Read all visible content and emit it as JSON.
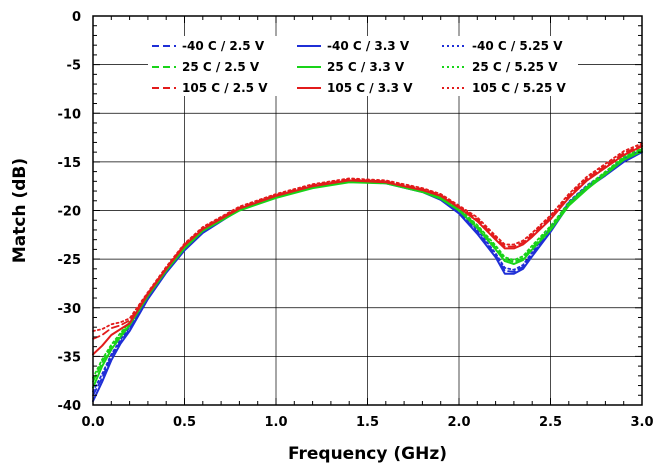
{
  "chart_data": {
    "type": "line",
    "xlabel": "Frequency (GHz)",
    "ylabel": "Match (dB)",
    "xlim": [
      0,
      3.0
    ],
    "ylim": [
      -40,
      0
    ],
    "x_ticks": [
      "0.0",
      "0.5",
      "1.0",
      "1.5",
      "2.0",
      "2.5",
      "3.0"
    ],
    "y_ticks": [
      "0",
      "-5",
      "-10",
      "-15",
      "-20",
      "-25",
      "-30",
      "-35",
      "-40"
    ],
    "grid": true,
    "legend_position": "top",
    "series": [
      {
        "name": "-40 C / 2.5 V",
        "color": "#1f2fd6",
        "dash": "dashed",
        "x": [
          0.0,
          0.05,
          0.1,
          0.15,
          0.2,
          0.3,
          0.4,
          0.5,
          0.6,
          0.8,
          1.0,
          1.2,
          1.4,
          1.6,
          1.8,
          1.9,
          2.0,
          2.1,
          2.2,
          2.25,
          2.3,
          2.35,
          2.4,
          2.5,
          2.6,
          2.7,
          2.8,
          2.9,
          3.0
        ],
        "y": [
          -39.0,
          -37.2,
          -35.0,
          -33.5,
          -32.2,
          -29.0,
          -26.3,
          -24.0,
          -22.2,
          -19.8,
          -18.5,
          -17.5,
          -16.9,
          -17.1,
          -18.0,
          -18.8,
          -20.2,
          -22.2,
          -24.6,
          -26.2,
          -26.3,
          -25.8,
          -24.5,
          -22.0,
          -19.2,
          -17.5,
          -16.2,
          -14.8,
          -13.8
        ]
      },
      {
        "name": "-40 C / 3.3 V",
        "color": "#1f2fd6",
        "dash": "solid",
        "x": [
          0.0,
          0.05,
          0.1,
          0.15,
          0.2,
          0.3,
          0.4,
          0.5,
          0.6,
          0.8,
          1.0,
          1.2,
          1.4,
          1.6,
          1.8,
          1.9,
          2.0,
          2.1,
          2.2,
          2.25,
          2.3,
          2.35,
          2.4,
          2.5,
          2.6,
          2.7,
          2.8,
          2.9,
          3.0
        ],
        "y": [
          -39.6,
          -37.6,
          -35.4,
          -33.7,
          -32.4,
          -29.1,
          -26.4,
          -24.1,
          -22.3,
          -19.9,
          -18.6,
          -17.6,
          -17.0,
          -17.2,
          -18.1,
          -18.9,
          -20.3,
          -22.4,
          -24.8,
          -26.5,
          -26.5,
          -26.0,
          -24.7,
          -22.2,
          -19.4,
          -17.7,
          -16.4,
          -15.0,
          -14.0
        ]
      },
      {
        "name": "-40 C / 5.25 V",
        "color": "#1f2fd6",
        "dash": "dotted",
        "x": [
          0.0,
          0.05,
          0.1,
          0.15,
          0.2,
          0.3,
          0.4,
          0.5,
          0.6,
          0.8,
          1.0,
          1.2,
          1.4,
          1.6,
          1.8,
          1.9,
          2.0,
          2.1,
          2.2,
          2.25,
          2.3,
          2.35,
          2.4,
          2.5,
          2.6,
          2.7,
          2.8,
          2.9,
          3.0
        ],
        "y": [
          -38.6,
          -36.8,
          -34.8,
          -33.3,
          -32.0,
          -28.9,
          -26.2,
          -23.9,
          -22.1,
          -19.8,
          -18.5,
          -17.5,
          -16.9,
          -17.1,
          -18.0,
          -18.8,
          -20.1,
          -22.0,
          -24.4,
          -25.9,
          -26.1,
          -25.6,
          -24.3,
          -21.8,
          -19.1,
          -17.4,
          -16.1,
          -14.7,
          -13.7
        ]
      },
      {
        "name": "25 C / 2.5 V",
        "color": "#19d319",
        "dash": "dashed",
        "x": [
          0.0,
          0.05,
          0.1,
          0.15,
          0.2,
          0.3,
          0.4,
          0.5,
          0.6,
          0.8,
          1.0,
          1.2,
          1.4,
          1.6,
          1.8,
          1.9,
          2.0,
          2.1,
          2.2,
          2.25,
          2.3,
          2.35,
          2.4,
          2.5,
          2.6,
          2.7,
          2.8,
          2.9,
          3.0
        ],
        "y": [
          -37.6,
          -35.6,
          -34.0,
          -32.8,
          -31.6,
          -28.7,
          -26.1,
          -23.8,
          -22.0,
          -19.9,
          -18.6,
          -17.6,
          -17.0,
          -17.1,
          -18.0,
          -18.7,
          -19.9,
          -21.6,
          -23.8,
          -25.0,
          -25.3,
          -24.9,
          -23.8,
          -21.8,
          -19.3,
          -17.6,
          -16.1,
          -14.6,
          -13.7
        ]
      },
      {
        "name": "25 C / 3.3 V",
        "color": "#19d319",
        "dash": "solid",
        "x": [
          0.0,
          0.05,
          0.1,
          0.15,
          0.2,
          0.3,
          0.4,
          0.5,
          0.6,
          0.8,
          1.0,
          1.2,
          1.4,
          1.6,
          1.8,
          1.9,
          2.0,
          2.1,
          2.2,
          2.25,
          2.3,
          2.35,
          2.4,
          2.5,
          2.6,
          2.7,
          2.8,
          2.9,
          3.0
        ],
        "y": [
          -38.2,
          -36.0,
          -34.3,
          -33.0,
          -31.8,
          -28.8,
          -26.2,
          -23.9,
          -22.1,
          -20.0,
          -18.7,
          -17.7,
          -17.1,
          -17.2,
          -18.1,
          -18.8,
          -20.0,
          -21.8,
          -24.0,
          -25.2,
          -25.5,
          -25.1,
          -24.0,
          -22.0,
          -19.5,
          -17.8,
          -16.3,
          -14.8,
          -13.9
        ]
      },
      {
        "name": "25 C / 5.25 V",
        "color": "#19d319",
        "dash": "dotted",
        "x": [
          0.0,
          0.05,
          0.1,
          0.15,
          0.2,
          0.3,
          0.4,
          0.5,
          0.6,
          0.8,
          1.0,
          1.2,
          1.4,
          1.6,
          1.8,
          1.9,
          2.0,
          2.1,
          2.2,
          2.25,
          2.3,
          2.35,
          2.4,
          2.5,
          2.6,
          2.7,
          2.8,
          2.9,
          3.0
        ],
        "y": [
          -37.2,
          -35.3,
          -33.8,
          -32.6,
          -31.5,
          -28.6,
          -26.0,
          -23.7,
          -21.9,
          -19.8,
          -18.5,
          -17.6,
          -16.9,
          -17.1,
          -17.9,
          -18.6,
          -19.8,
          -21.5,
          -23.6,
          -24.8,
          -25.1,
          -24.7,
          -23.6,
          -21.6,
          -19.2,
          -17.5,
          -16.0,
          -14.5,
          -13.6
        ]
      },
      {
        "name": "105 C / 2.5 V",
        "color": "#e21b1b",
        "dash": "dashed",
        "x": [
          0.0,
          0.05,
          0.1,
          0.15,
          0.2,
          0.3,
          0.4,
          0.5,
          0.6,
          0.8,
          1.0,
          1.2,
          1.4,
          1.6,
          1.8,
          1.9,
          2.0,
          2.1,
          2.2,
          2.25,
          2.3,
          2.35,
          2.4,
          2.5,
          2.6,
          2.7,
          2.8,
          2.9,
          3.0
        ],
        "y": [
          -33.2,
          -32.8,
          -32.1,
          -31.8,
          -31.3,
          -28.5,
          -25.9,
          -23.5,
          -21.8,
          -19.7,
          -18.4,
          -17.4,
          -16.8,
          -17.0,
          -17.8,
          -18.4,
          -19.6,
          -20.9,
          -22.8,
          -23.7,
          -23.7,
          -23.3,
          -22.5,
          -20.7,
          -18.5,
          -16.7,
          -15.4,
          -14.1,
          -13.3
        ]
      },
      {
        "name": "105 C / 3.3 V",
        "color": "#e21b1b",
        "dash": "solid",
        "x": [
          0.0,
          0.05,
          0.1,
          0.15,
          0.2,
          0.3,
          0.4,
          0.5,
          0.6,
          0.8,
          1.0,
          1.2,
          1.4,
          1.6,
          1.8,
          1.9,
          2.0,
          2.1,
          2.2,
          2.25,
          2.3,
          2.35,
          2.4,
          2.5,
          2.6,
          2.7,
          2.8,
          2.9,
          3.0
        ],
        "y": [
          -34.8,
          -33.9,
          -32.8,
          -32.2,
          -31.6,
          -28.6,
          -26.0,
          -23.6,
          -21.9,
          -19.8,
          -18.5,
          -17.5,
          -16.9,
          -17.1,
          -17.9,
          -18.5,
          -19.7,
          -21.1,
          -23.0,
          -23.9,
          -23.9,
          -23.5,
          -22.7,
          -20.9,
          -18.7,
          -16.9,
          -15.6,
          -14.3,
          -13.4
        ]
      },
      {
        "name": "105 C / 5.25 V",
        "color": "#e21b1b",
        "dash": "dotted",
        "x": [
          0.0,
          0.05,
          0.1,
          0.15,
          0.2,
          0.3,
          0.4,
          0.5,
          0.6,
          0.8,
          1.0,
          1.2,
          1.4,
          1.6,
          1.8,
          1.9,
          2.0,
          2.1,
          2.2,
          2.25,
          2.3,
          2.35,
          2.4,
          2.5,
          2.6,
          2.7,
          2.8,
          2.9,
          3.0
        ],
        "y": [
          -32.4,
          -32.2,
          -31.7,
          -31.5,
          -31.1,
          -28.4,
          -25.8,
          -23.4,
          -21.7,
          -19.6,
          -18.3,
          -17.3,
          -16.7,
          -16.9,
          -17.7,
          -18.3,
          -19.5,
          -20.7,
          -22.6,
          -23.5,
          -23.5,
          -23.1,
          -22.3,
          -20.5,
          -18.3,
          -16.5,
          -15.2,
          -13.9,
          -13.1
        ]
      }
    ]
  }
}
